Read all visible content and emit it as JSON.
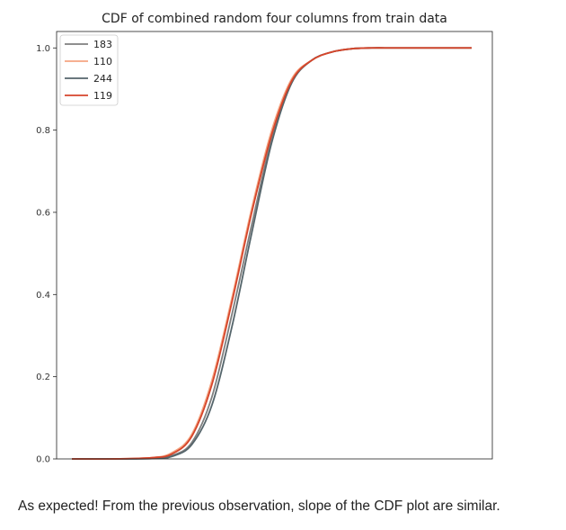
{
  "chart_data": {
    "type": "line",
    "title": "CDF of combined random four columns from train data",
    "xlabel": "",
    "ylabel": "",
    "xlim": [
      0,
      100
    ],
    "ylim": [
      0,
      1.04
    ],
    "xticks": [],
    "yticks": [
      0.0,
      0.2,
      0.4,
      0.6,
      0.8,
      1.0
    ],
    "ytick_labels": [
      "0.0",
      "0.2",
      "0.4",
      "0.6",
      "0.8",
      "1.0"
    ],
    "grid": false,
    "legend_position": "top-left",
    "series": [
      {
        "name": "183",
        "color": "#7f7f7f",
        "x": [
          0,
          10,
          20,
          25,
          30,
          35,
          40,
          45,
          50,
          55,
          60,
          65,
          70,
          75,
          80,
          85,
          90,
          95,
          100
        ],
        "y": [
          0.0,
          0.0,
          0.002,
          0.008,
          0.04,
          0.15,
          0.35,
          0.57,
          0.78,
          0.92,
          0.97,
          0.99,
          0.998,
          1.0,
          1.0,
          1.0,
          1.0,
          1.0,
          1.0
        ]
      },
      {
        "name": "110",
        "color": "#f4a582",
        "x": [
          0,
          10,
          20,
          25,
          30,
          35,
          40,
          45,
          50,
          55,
          60,
          65,
          70,
          75,
          80,
          85,
          90,
          95,
          100
        ],
        "y": [
          0.0,
          0.0,
          0.003,
          0.015,
          0.06,
          0.19,
          0.39,
          0.61,
          0.8,
          0.925,
          0.97,
          0.99,
          0.998,
          1.0,
          1.0,
          1.0,
          1.0,
          1.0,
          1.0
        ]
      },
      {
        "name": "244",
        "color": "#55656b",
        "x": [
          0,
          10,
          20,
          25,
          30,
          35,
          40,
          45,
          50,
          55,
          60,
          65,
          70,
          75,
          80,
          85,
          90,
          95,
          100
        ],
        "y": [
          0.0,
          0.0,
          0.001,
          0.006,
          0.035,
          0.13,
          0.32,
          0.55,
          0.77,
          0.915,
          0.97,
          0.99,
          0.998,
          1.0,
          1.0,
          1.0,
          1.0,
          1.0,
          1.0
        ]
      },
      {
        "name": "119",
        "color": "#d6452b",
        "x": [
          0,
          10,
          20,
          25,
          30,
          35,
          40,
          45,
          50,
          55,
          60,
          65,
          70,
          75,
          80,
          85,
          90,
          95,
          100
        ],
        "y": [
          0.0,
          0.0,
          0.003,
          0.012,
          0.055,
          0.18,
          0.38,
          0.6,
          0.79,
          0.92,
          0.97,
          0.99,
          0.998,
          1.0,
          1.0,
          1.0,
          1.0,
          1.0,
          1.0
        ]
      }
    ]
  },
  "caption": "As expected! From the previous observation, slope of the CDF plot are similar."
}
